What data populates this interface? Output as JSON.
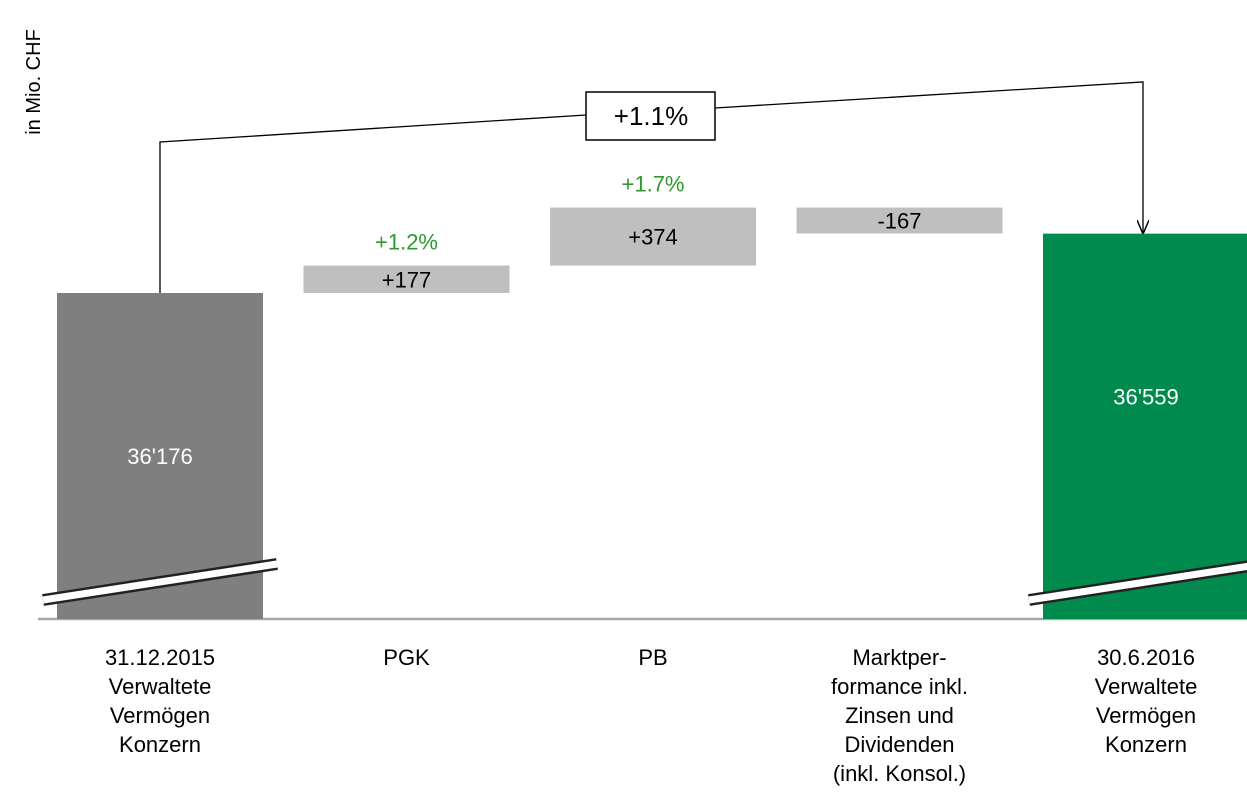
{
  "chart_data": {
    "type": "bar",
    "subtype": "waterfall",
    "ylabel": "in Mio. CHF",
    "axis_break": true,
    "categories": [
      [
        "31.12.2015",
        "Verwaltete",
        "Vermögen",
        "Konzern"
      ],
      [
        "PGK"
      ],
      [
        "PB"
      ],
      [
        "Marktper-",
        "formance inkl.",
        "Zinsen und",
        "Dividenden",
        "(inkl. Konsol.)"
      ],
      [
        "30.6.2016",
        "Verwaltete",
        "Vermögen",
        "Konzern"
      ]
    ],
    "bars": [
      {
        "kind": "total",
        "value": 36176,
        "label": "36'176",
        "pct": ""
      },
      {
        "kind": "delta",
        "value": 177,
        "label": "+177",
        "pct": "+1.2%"
      },
      {
        "kind": "delta",
        "value": 374,
        "label": "+374",
        "pct": "+1.7%"
      },
      {
        "kind": "delta",
        "value": -167,
        "label": "-167",
        "pct": ""
      },
      {
        "kind": "total",
        "value": 36559,
        "label": "36'559",
        "pct": ""
      }
    ],
    "total_change": "+1.1%",
    "colors": {
      "start_total": "#7f7f7f",
      "delta": "#bfbfbf",
      "end_total": "#008a4e",
      "pct_text": "#2e9a2e",
      "axis": "#a6a6a6"
    }
  }
}
